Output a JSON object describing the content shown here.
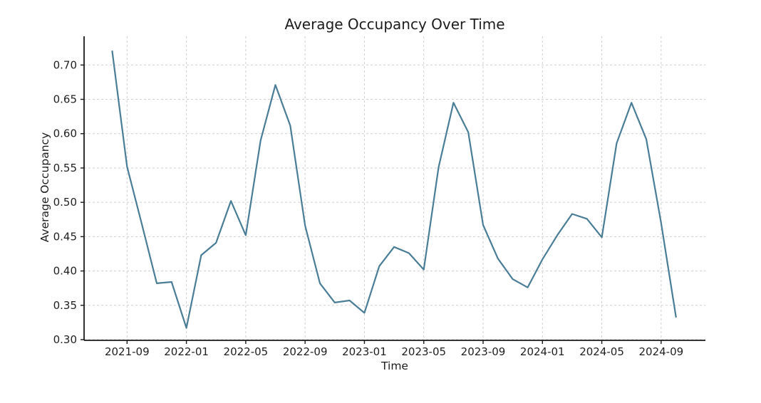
{
  "figure": {
    "background_color": "#ffffff",
    "text_color": "#1c1c1c"
  },
  "chart_data": {
    "type": "line",
    "title": "Average Occupancy Over Time",
    "xlabel": "Time",
    "ylabel": "Average Occupancy",
    "x": [
      "2021-08",
      "2021-09",
      "2021-10",
      "2021-11",
      "2021-12",
      "2022-01",
      "2022-02",
      "2022-03",
      "2022-04",
      "2022-05",
      "2022-06",
      "2022-07",
      "2022-08",
      "2022-09",
      "2022-10",
      "2022-11",
      "2022-12",
      "2023-01",
      "2023-02",
      "2023-03",
      "2023-04",
      "2023-05",
      "2023-06",
      "2023-07",
      "2023-08",
      "2023-09",
      "2023-10",
      "2023-11",
      "2023-12",
      "2024-01",
      "2024-02",
      "2024-03",
      "2024-04",
      "2024-05",
      "2024-06",
      "2024-07",
      "2024-08",
      "2024-09",
      "2024-10"
    ],
    "values": [
      0.72,
      0.552,
      0.468,
      0.382,
      0.384,
      0.317,
      0.423,
      0.441,
      0.502,
      0.452,
      0.59,
      0.671,
      0.612,
      0.466,
      0.382,
      0.354,
      0.357,
      0.339,
      0.407,
      0.435,
      0.426,
      0.402,
      0.551,
      0.645,
      0.602,
      0.467,
      0.418,
      0.388,
      0.376,
      0.417,
      0.452,
      0.483,
      0.476,
      0.449,
      0.586,
      0.645,
      0.592,
      0.47,
      0.333
    ],
    "series_name": "Average Occupancy",
    "x_tick_labels": [
      "2021-09",
      "2022-01",
      "2022-05",
      "2022-09",
      "2023-01",
      "2023-05",
      "2023-09",
      "2024-01",
      "2024-05",
      "2024-09"
    ],
    "y_tick_labels": [
      "0.30",
      "0.35",
      "0.40",
      "0.45",
      "0.50",
      "0.55",
      "0.60",
      "0.65",
      "0.70"
    ],
    "ylim": [
      0.297,
      0.74
    ],
    "grid": "dashed-major-both",
    "legend": "none",
    "line_color": "#4a7d96",
    "grid_color": "#cfcfcf",
    "spine_color": "#1a1a1a"
  }
}
